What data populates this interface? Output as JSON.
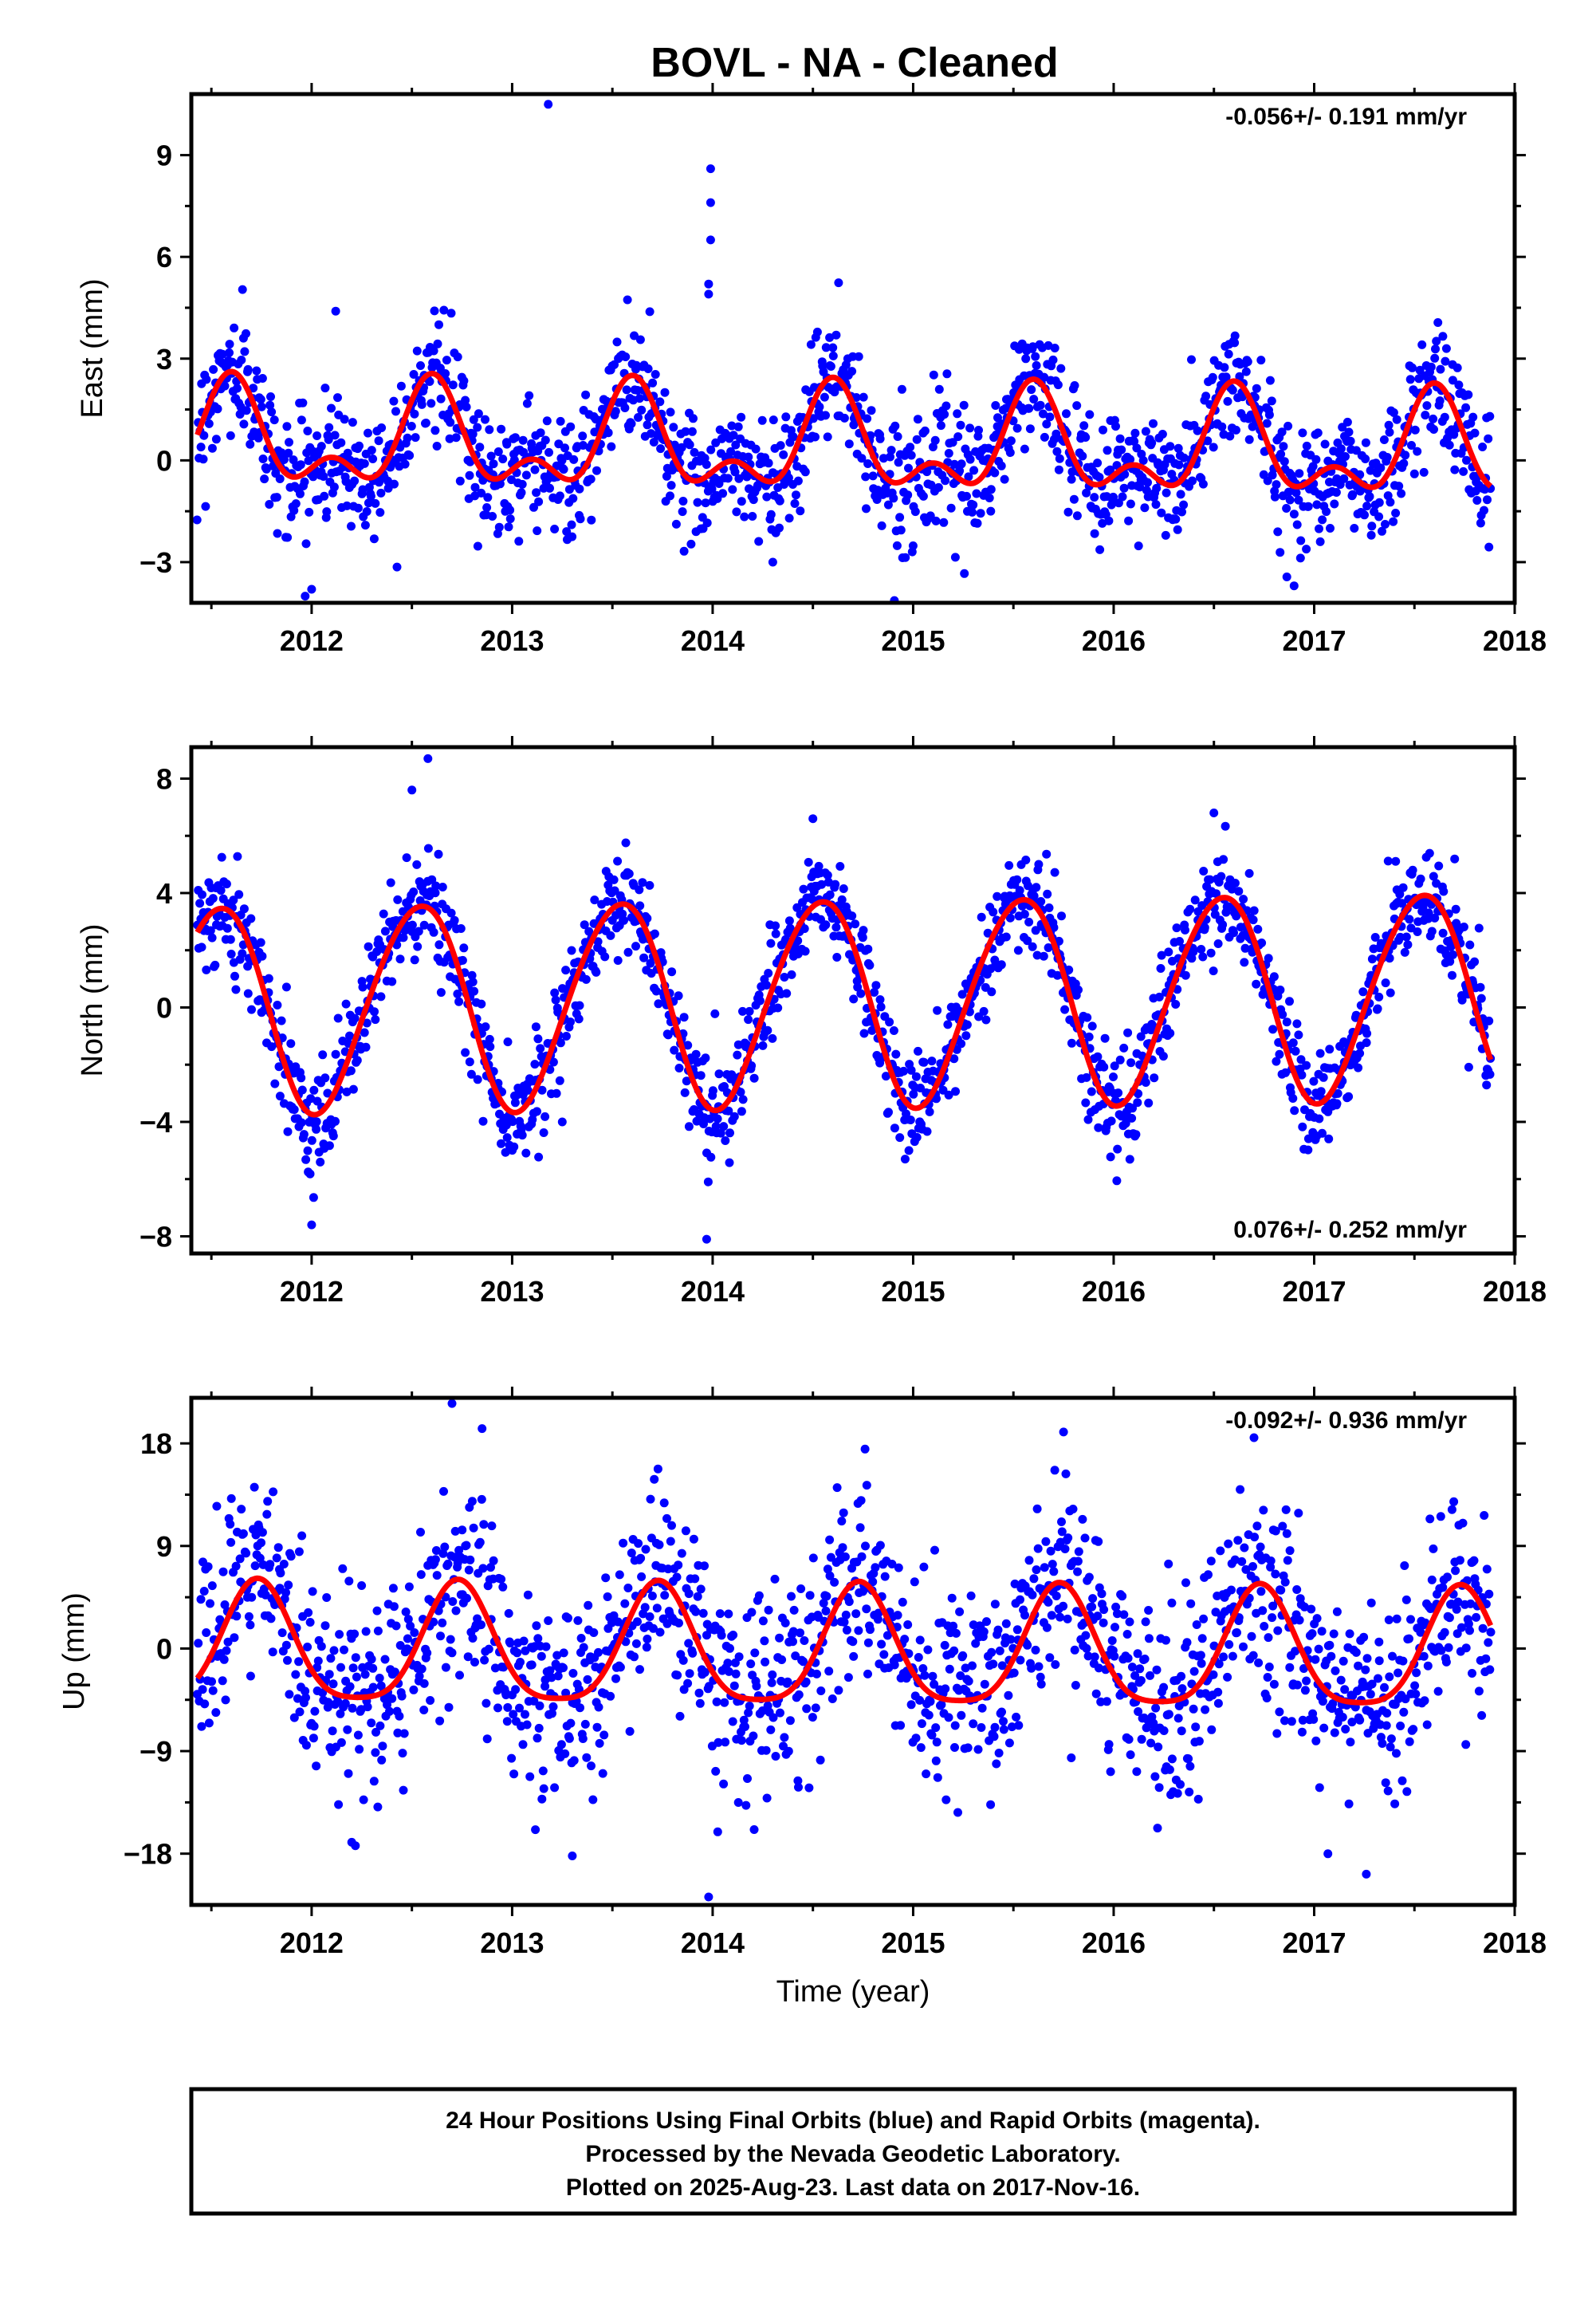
{
  "title": "BOVL  - NA - Cleaned",
  "xlabel": "Time (year)",
  "footer": {
    "line1": "24 Hour Positions Using Final Orbits (blue) and Rapid Orbits (magenta).",
    "line2": "Processed by the Nevada Geodetic Laboratory.",
    "line3": "Plotted on 2025-Aug-23. Last data on 2017-Nov-16."
  },
  "colors": {
    "data": "#0000ff",
    "model": "#ff0000",
    "frame": "#000000"
  },
  "chart_data": [
    {
      "type": "scatter",
      "component": "east",
      "ylabel": "East (mm)",
      "rate_label": "-0.056+/- 0.191 mm/yr",
      "rate_position": "top-right",
      "xlim": [
        2011.4,
        2018.0
      ],
      "ylim": [
        -4.2,
        10.8
      ],
      "xticks": [
        2012,
        2013,
        2014,
        2015,
        2016,
        2017,
        2018
      ],
      "yticks": [
        -3,
        0,
        3,
        6,
        9
      ],
      "x_start": 2011.43,
      "x_end": 2017.88,
      "model": {
        "annual_amp": 1.25,
        "annual_phase": 2011.6,
        "semiannual_amp": 0.8,
        "semiannual_phase": 2011.6,
        "offset": 0.4,
        "rate": -0.056
      },
      "noise_sd": 0.9,
      "outliers": [
        [
          2012.12,
          4.4
        ],
        [
          2013.18,
          10.5
        ],
        [
          2013.99,
          8.6
        ],
        [
          2013.99,
          7.6
        ],
        [
          2013.99,
          6.5
        ],
        [
          2013.98,
          5.2
        ],
        [
          2013.98,
          4.9
        ],
        [
          2012.0,
          -3.8
        ],
        [
          2016.9,
          -3.7
        ],
        [
          2014.3,
          -3.0
        ]
      ],
      "series": [
        {
          "name": "",
          "role": "observations",
          "color": "#0000ff"
        },
        {
          "name": "",
          "role": "model fit",
          "color": "#ff0000"
        }
      ]
    },
    {
      "type": "scatter",
      "component": "north",
      "ylabel": "North (mm)",
      "rate_label": "0.076+/- 0.252 mm/yr",
      "rate_position": "bottom-right",
      "xlim": [
        2011.4,
        2018.0
      ],
      "ylim": [
        -8.6,
        9.1
      ],
      "xticks": [
        2012,
        2013,
        2014,
        2015,
        2016,
        2017,
        2018
      ],
      "yticks": [
        -8,
        -4,
        0,
        4,
        8
      ],
      "x_start": 2011.43,
      "x_end": 2017.88,
      "model": {
        "annual_amp": 3.6,
        "annual_phase": 2011.53,
        "semiannual_amp": 0.25,
        "semiannual_phase": 2011.7,
        "offset": 0.2,
        "rate": 0.076
      },
      "noise_sd": 0.9,
      "outliers": [
        [
          2012.58,
          8.7
        ],
        [
          2012.5,
          7.6
        ],
        [
          2014.5,
          6.6
        ],
        [
          2016.5,
          6.8
        ],
        [
          2012.0,
          -7.6
        ],
        [
          2013.97,
          -8.1
        ],
        [
          2014.96,
          -5.3
        ],
        [
          2013.25,
          -4.0
        ]
      ],
      "series": [
        {
          "name": "",
          "role": "observations",
          "color": "#0000ff"
        },
        {
          "name": "",
          "role": "model fit",
          "color": "#ff0000"
        }
      ]
    },
    {
      "type": "scatter",
      "component": "up",
      "ylabel": "Up (mm)",
      "rate_label": "-0.092+/- 0.936 mm/yr",
      "rate_position": "top-right",
      "xlim": [
        2011.4,
        2018.0
      ],
      "ylim": [
        -22.5,
        22.0
      ],
      "xticks": [
        2012,
        2013,
        2014,
        2015,
        2016,
        2017,
        2018
      ],
      "yticks": [
        -18,
        -9,
        0,
        9,
        18
      ],
      "x_start": 2011.43,
      "x_end": 2017.88,
      "model": {
        "annual_amp": 5.2,
        "annual_phase": 2011.73,
        "semiannual_amp": 1.1,
        "semiannual_phase": 2011.73,
        "offset": -0.4,
        "rate": -0.092
      },
      "noise_sd": 4.3,
      "outliers": [
        [
          2012.7,
          21.5
        ],
        [
          2012.85,
          19.3
        ],
        [
          2014.76,
          17.5
        ],
        [
          2015.75,
          19.0
        ],
        [
          2013.98,
          -21.8
        ],
        [
          2017.26,
          -19.8
        ],
        [
          2013.3,
          -18.2
        ],
        [
          2012.2,
          -17.0
        ],
        [
          2016.7,
          18.5
        ]
      ],
      "series": [
        {
          "name": "",
          "role": "observations",
          "color": "#0000ff"
        },
        {
          "name": "",
          "role": "model fit",
          "color": "#ff0000"
        }
      ]
    }
  ]
}
